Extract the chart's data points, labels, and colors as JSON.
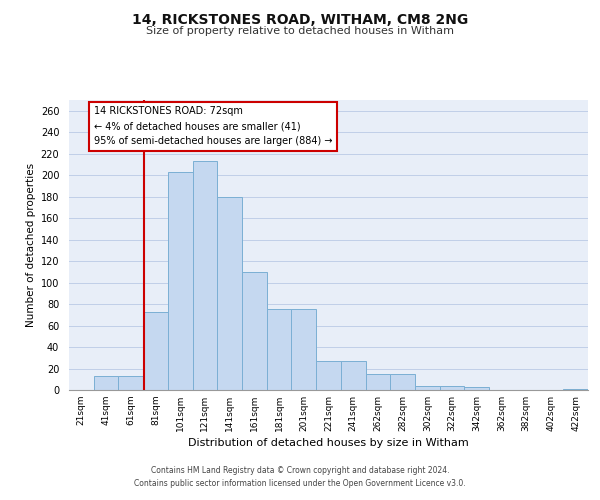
{
  "title1": "14, RICKSTONES ROAD, WITHAM, CM8 2NG",
  "title2": "Size of property relative to detached houses in Witham",
  "xlabel": "Distribution of detached houses by size in Witham",
  "ylabel": "Number of detached properties",
  "categories": [
    "21sqm",
    "41sqm",
    "61sqm",
    "81sqm",
    "101sqm",
    "121sqm",
    "141sqm",
    "161sqm",
    "181sqm",
    "201sqm",
    "221sqm",
    "241sqm",
    "262sqm",
    "282sqm",
    "302sqm",
    "322sqm",
    "342sqm",
    "362sqm",
    "382sqm",
    "402sqm",
    "422sqm"
  ],
  "values": [
    0,
    13,
    13,
    73,
    203,
    213,
    180,
    110,
    75,
    75,
    27,
    27,
    15,
    15,
    4,
    4,
    3,
    0,
    0,
    0,
    1
  ],
  "bar_color": "#c5d8f0",
  "bar_edge_color": "#7bafd4",
  "grid_color": "#c0cfe8",
  "background_color": "#e8eef8",
  "annotation_box_text": [
    "14 RICKSTONES ROAD: 72sqm",
    "← 4% of detached houses are smaller (41)",
    "95% of semi-detached houses are larger (884) →"
  ],
  "footer1": "Contains HM Land Registry data © Crown copyright and database right 2024.",
  "footer2": "Contains public sector information licensed under the Open Government Licence v3.0.",
  "ylim": [
    0,
    270
  ],
  "yticks": [
    0,
    20,
    40,
    60,
    80,
    100,
    120,
    140,
    160,
    180,
    200,
    220,
    240,
    260
  ]
}
